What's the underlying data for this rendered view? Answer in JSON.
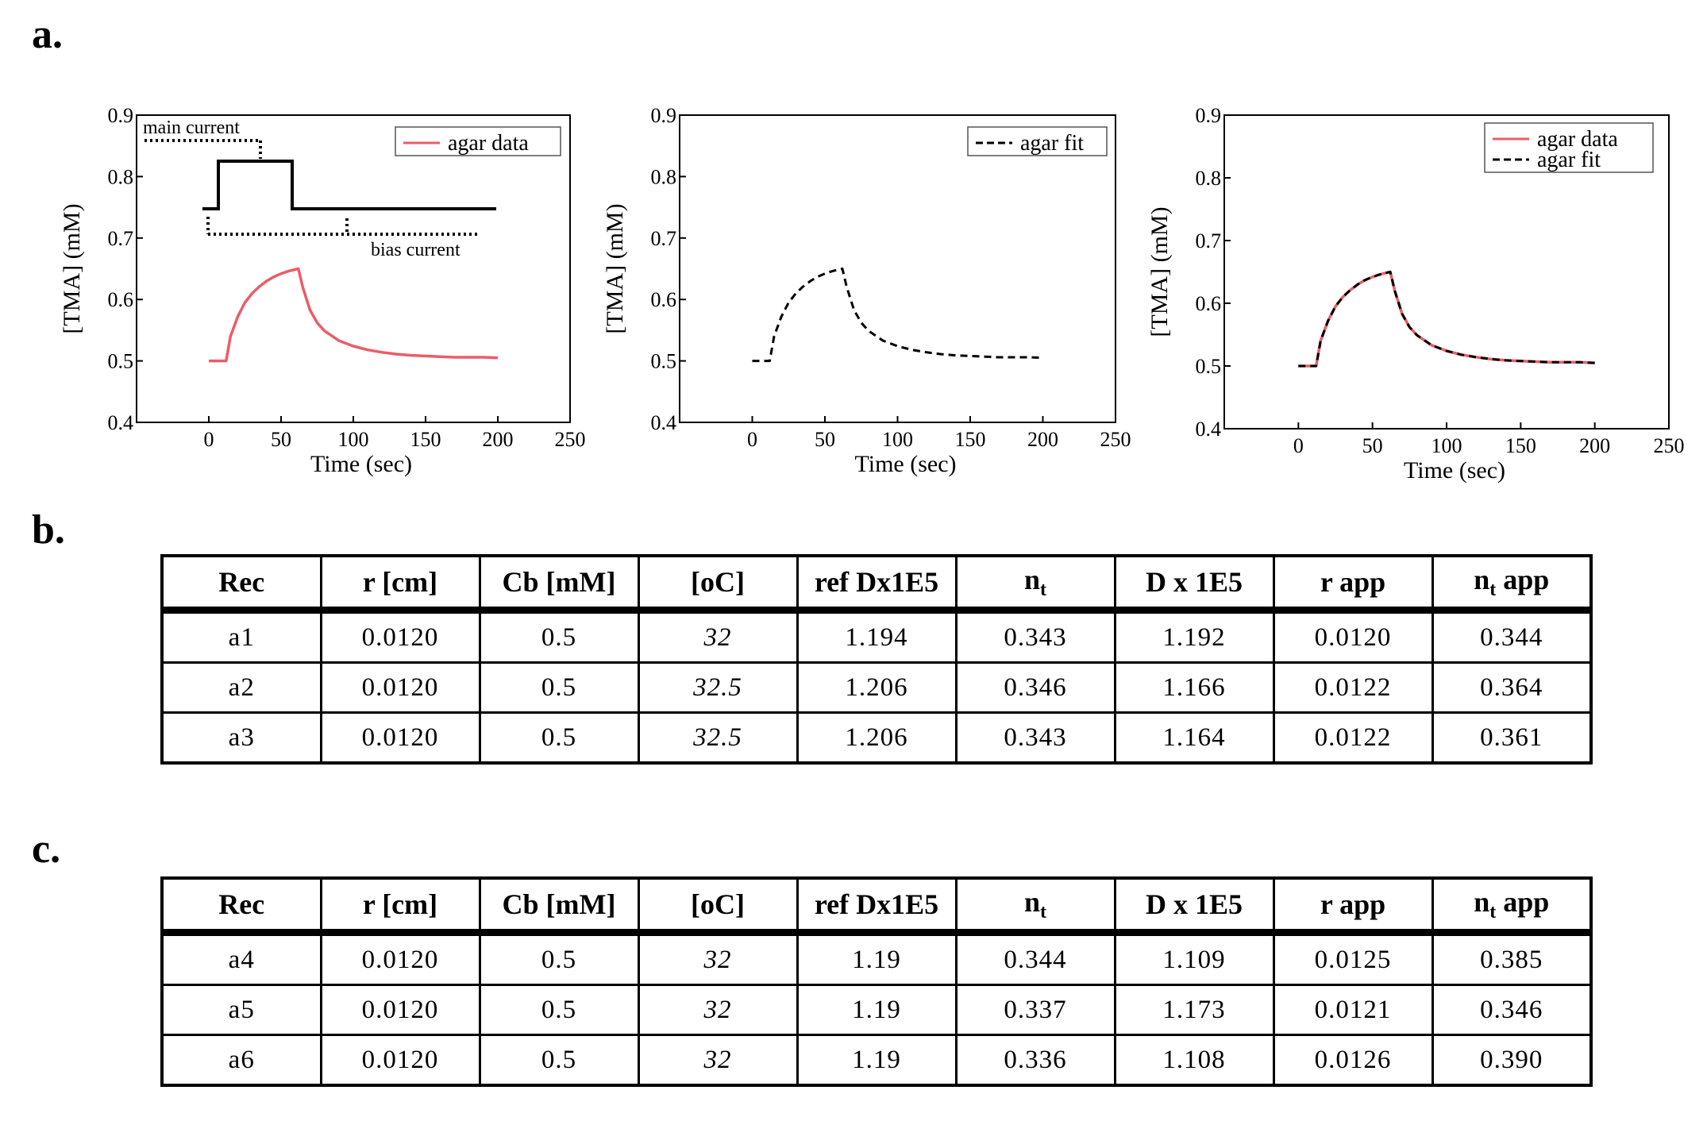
{
  "panels": {
    "a": "a.",
    "b": "b.",
    "c": "c."
  },
  "colors": {
    "data": "#ec5c68",
    "fit": "#000000"
  },
  "chart_data": [
    {
      "type": "line",
      "xlabel": "Time (sec)",
      "ylabel": "[TMA] (mM)",
      "xlim": [
        -50,
        250
      ],
      "ylim": [
        0.4,
        0.9
      ],
      "xticks": [
        "0",
        "50",
        "100",
        "150",
        "200",
        "250"
      ],
      "yticks": [
        "0.4",
        "0.5",
        "0.6",
        "0.7",
        "0.8",
        "0.9"
      ],
      "legend": "top-right",
      "series": [
        {
          "name": "agar data",
          "style": "solid",
          "color": "#ec5c68",
          "x": [
            0,
            12,
            15,
            20,
            25,
            30,
            35,
            40,
            45,
            50,
            55,
            60,
            62,
            65,
            70,
            75,
            80,
            90,
            100,
            110,
            120,
            130,
            140,
            150,
            160,
            170,
            180,
            190,
            200
          ],
          "y": [
            0.5,
            0.5,
            0.54,
            0.572,
            0.595,
            0.61,
            0.621,
            0.63,
            0.637,
            0.642,
            0.646,
            0.649,
            0.65,
            0.62,
            0.583,
            0.562,
            0.549,
            0.533,
            0.524,
            0.518,
            0.514,
            0.511,
            0.509,
            0.508,
            0.507,
            0.506,
            0.506,
            0.506,
            0.505
          ]
        }
      ],
      "annotations": {
        "main_label": "main current",
        "bias_label": "bias current"
      }
    },
    {
      "type": "line",
      "xlabel": "Time (sec)",
      "ylabel": "[TMA] (mM)",
      "xlim": [
        -50,
        250
      ],
      "ylim": [
        0.4,
        0.9
      ],
      "xticks": [
        "0",
        "50",
        "100",
        "150",
        "200",
        "250"
      ],
      "yticks": [
        "0.4",
        "0.5",
        "0.6",
        "0.7",
        "0.8",
        "0.9"
      ],
      "legend": "top-right",
      "series": [
        {
          "name": "agar fit",
          "style": "dashed",
          "color": "#000000",
          "x": [
            0,
            12,
            15,
            20,
            25,
            30,
            35,
            40,
            45,
            50,
            55,
            60,
            62,
            65,
            70,
            75,
            80,
            90,
            100,
            110,
            120,
            130,
            140,
            150,
            160,
            170,
            180,
            190,
            200
          ],
          "y": [
            0.5,
            0.5,
            0.54,
            0.572,
            0.595,
            0.61,
            0.621,
            0.63,
            0.637,
            0.642,
            0.646,
            0.649,
            0.65,
            0.62,
            0.583,
            0.562,
            0.549,
            0.533,
            0.524,
            0.518,
            0.514,
            0.511,
            0.509,
            0.508,
            0.507,
            0.506,
            0.506,
            0.506,
            0.505
          ]
        }
      ]
    },
    {
      "type": "line",
      "xlabel": "Time (sec)",
      "ylabel": "[TMA] (mM)",
      "xlim": [
        -50,
        250
      ],
      "ylim": [
        0.4,
        0.9
      ],
      "xticks": [
        "0",
        "50",
        "100",
        "150",
        "200",
        "250"
      ],
      "yticks": [
        "0.4",
        "0.5",
        "0.6",
        "0.7",
        "0.8",
        "0.9"
      ],
      "legend": "top-right",
      "series": [
        {
          "name": "agar data",
          "style": "solid",
          "color": "#ec5c68",
          "x": [
            0,
            12,
            15,
            20,
            25,
            30,
            35,
            40,
            45,
            50,
            55,
            60,
            62,
            65,
            70,
            75,
            80,
            90,
            100,
            110,
            120,
            130,
            140,
            150,
            160,
            170,
            180,
            190,
            200
          ],
          "y": [
            0.5,
            0.5,
            0.54,
            0.572,
            0.595,
            0.61,
            0.621,
            0.63,
            0.637,
            0.642,
            0.646,
            0.649,
            0.65,
            0.62,
            0.583,
            0.562,
            0.549,
            0.533,
            0.524,
            0.518,
            0.514,
            0.511,
            0.509,
            0.508,
            0.507,
            0.506,
            0.506,
            0.506,
            0.505
          ]
        },
        {
          "name": "agar fit",
          "style": "dashed",
          "color": "#000000",
          "x": [
            0,
            12,
            15,
            20,
            25,
            30,
            35,
            40,
            45,
            50,
            55,
            60,
            62,
            65,
            70,
            75,
            80,
            90,
            100,
            110,
            120,
            130,
            140,
            150,
            160,
            170,
            180,
            190,
            200
          ],
          "y": [
            0.5,
            0.5,
            0.54,
            0.572,
            0.595,
            0.61,
            0.621,
            0.63,
            0.637,
            0.642,
            0.646,
            0.649,
            0.65,
            0.62,
            0.583,
            0.562,
            0.549,
            0.533,
            0.524,
            0.518,
            0.514,
            0.511,
            0.509,
            0.508,
            0.507,
            0.506,
            0.506,
            0.506,
            0.505
          ]
        }
      ]
    },
    {
      "type": "table",
      "headers": [
        "Rec",
        "r [cm]",
        "Cb [mM]",
        "[oC]",
        "ref Dx1E5",
        "n_t",
        "D x 1E5",
        "r app",
        "n_t app"
      ],
      "rows": [
        [
          "a1",
          "0.0120",
          "0.5",
          "32",
          "1.194",
          "0.343",
          "1.192",
          "0.0120",
          "0.344"
        ],
        [
          "a2",
          "0.0120",
          "0.5",
          "32.5",
          "1.206",
          "0.346",
          "1.166",
          "0.0122",
          "0.364"
        ],
        [
          "a3",
          "0.0120",
          "0.5",
          "32.5",
          "1.206",
          "0.343",
          "1.164",
          "0.0122",
          "0.361"
        ]
      ]
    },
    {
      "type": "table",
      "headers": [
        "Rec",
        "r [cm]",
        "Cb [mM]",
        "[oC]",
        "ref Dx1E5",
        "n_t",
        "D x 1E5",
        "r app",
        "n_t app"
      ],
      "rows": [
        [
          "a4",
          "0.0120",
          "0.5",
          "32",
          "1.19",
          "0.344",
          "1.109",
          "0.0125",
          "0.385"
        ],
        [
          "a5",
          "0.0120",
          "0.5",
          "32",
          "1.19",
          "0.337",
          "1.173",
          "0.0121",
          "0.346"
        ],
        [
          "a6",
          "0.0120",
          "0.5",
          "32",
          "1.19",
          "0.336",
          "1.108",
          "0.0126",
          "0.390"
        ]
      ]
    }
  ],
  "tables": {
    "b": {
      "headers": {
        "rec": "Rec",
        "r": "r [cm]",
        "cb": "Cb [mM]",
        "temp": "[oC]",
        "refd": "ref Dx1E5",
        "nt_main": "n",
        "nt_sub": "t",
        "d": "D x 1E5",
        "rapp": "r app",
        "ntapp_main": "n",
        "ntapp_sub": "t",
        "ntapp_tail": " app"
      },
      "rows": [
        {
          "rec": "a1",
          "r": "0.0120",
          "cb": "0.5",
          "temp": "32",
          "refd": "1.194",
          "nt": "0.343",
          "d": "1.192",
          "rapp": "0.0120",
          "ntapp": "0.344"
        },
        {
          "rec": "a2",
          "r": "0.0120",
          "cb": "0.5",
          "temp": "32.5",
          "refd": "1.206",
          "nt": "0.346",
          "d": "1.166",
          "rapp": "0.0122",
          "ntapp": "0.364"
        },
        {
          "rec": "a3",
          "r": "0.0120",
          "cb": "0.5",
          "temp": "32.5",
          "refd": "1.206",
          "nt": "0.343",
          "d": "1.164",
          "rapp": "0.0122",
          "ntapp": "0.361"
        }
      ]
    },
    "c": {
      "headers": {
        "rec": "Rec",
        "r": "r [cm]",
        "cb": "Cb [mM]",
        "temp": "[oC]",
        "refd": "ref Dx1E5",
        "nt_main": "n",
        "nt_sub": "t",
        "d": "D x 1E5",
        "rapp": "r app",
        "ntapp_main": "n",
        "ntapp_sub": "t",
        "ntapp_tail": " app"
      },
      "rows": [
        {
          "rec": "a4",
          "r": "0.0120",
          "cb": "0.5",
          "temp": "32",
          "refd": "1.19",
          "nt": "0.344",
          "d": "1.109",
          "rapp": "0.0125",
          "ntapp": "0.385"
        },
        {
          "rec": "a5",
          "r": "0.0120",
          "cb": "0.5",
          "temp": "32",
          "refd": "1.19",
          "nt": "0.337",
          "d": "1.173",
          "rapp": "0.0121",
          "ntapp": "0.346"
        },
        {
          "rec": "a6",
          "r": "0.0120",
          "cb": "0.5",
          "temp": "32",
          "refd": "1.19",
          "nt": "0.336",
          "d": "1.108",
          "rapp": "0.0126",
          "ntapp": "0.390"
        }
      ]
    }
  }
}
